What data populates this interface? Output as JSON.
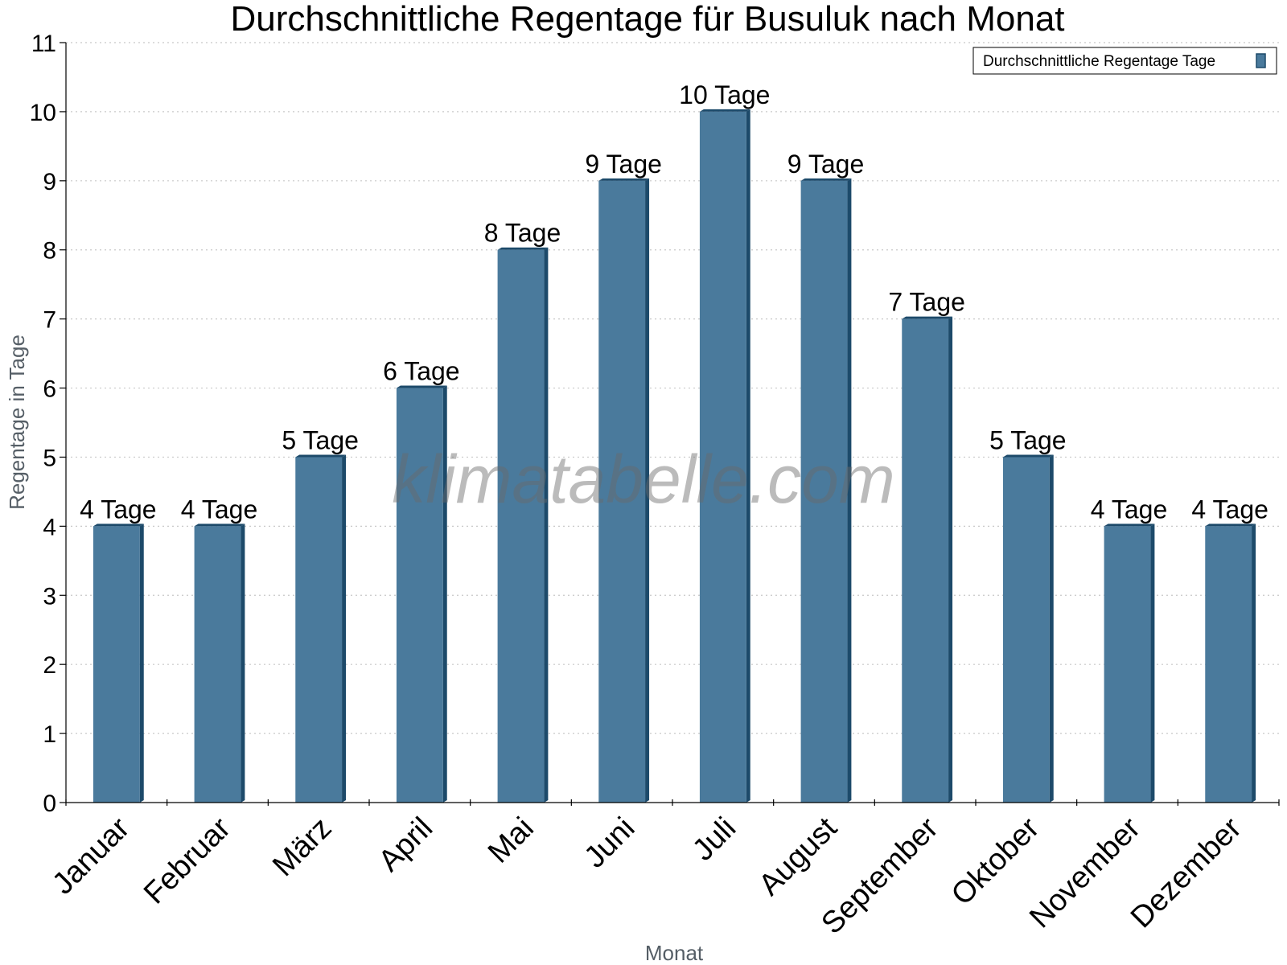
{
  "watermark": "klimatabelle.com",
  "colors": {
    "bar_front": "#4a7a9c",
    "bar_side": "#1d4a6a",
    "bar_top": "#1d4a6a",
    "grid": "#c8c8c8",
    "axis": "#000000"
  },
  "chart_data": {
    "type": "bar",
    "title": "Durchschnittliche Regentage für Busuluk nach Monat",
    "xlabel": "Monat",
    "ylabel": "Regentage in Tage",
    "ylim": [
      0,
      11
    ],
    "yticks": [
      "0",
      "1",
      "2",
      "3",
      "4",
      "5",
      "6",
      "7",
      "8",
      "9",
      "10",
      "11"
    ],
    "grid": "horizontal dotted",
    "legend_position": "top-right",
    "categories": [
      "Januar",
      "Februar",
      "März",
      "April",
      "Mai",
      "Juni",
      "Juli",
      "August",
      "September",
      "Oktober",
      "November",
      "Dezember"
    ],
    "series": [
      {
        "name": "Durchschnittliche Regentage Tage",
        "values": [
          4,
          4,
          5,
          6,
          8,
          9,
          10,
          9,
          7,
          5,
          4,
          4
        ],
        "data_labels": [
          "4 Tage",
          "4 Tage",
          "5 Tage",
          "6 Tage",
          "8 Tage",
          "9 Tage",
          "10 Tage",
          "9 Tage",
          "7 Tage",
          "5 Tage",
          "4 Tage",
          "4 Tage"
        ]
      }
    ]
  }
}
